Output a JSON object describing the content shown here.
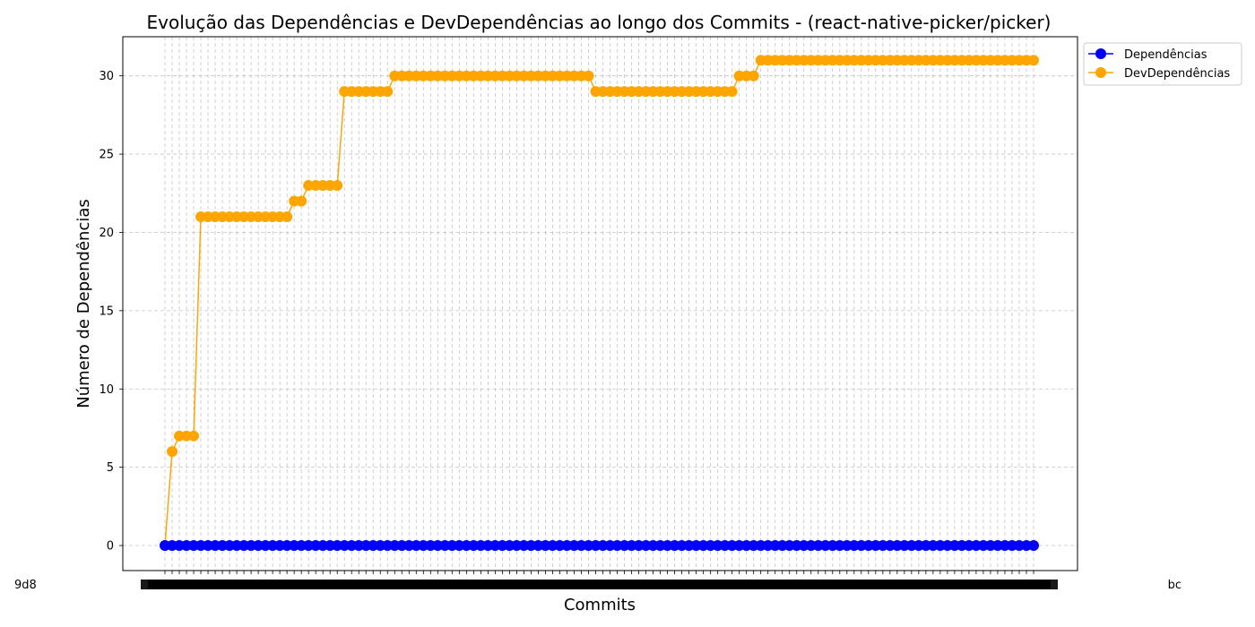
{
  "chart_data": {
    "type": "line",
    "title": "Evolução das Dependências e DevDependências ao longo dos Commits - (react-native-picker/picker)",
    "xlabel": "Commits",
    "ylabel": "Número de Dependências",
    "ylim": [
      -1.6,
      32.5
    ],
    "yticks": [
      0,
      5,
      10,
      15,
      20,
      25,
      30
    ],
    "grid": true,
    "legend_position": "top-right outside",
    "x_tick_labels_note": "commit hashes (overlapping, illegible)",
    "first_x_label_fragment": "9d8",
    "last_x_label_fragment": "bc",
    "series": [
      {
        "name": "Dependências",
        "color": "#0000ff",
        "values": [
          0,
          0,
          0,
          0,
          0,
          0,
          0,
          0,
          0,
          0,
          0,
          0,
          0,
          0,
          0,
          0,
          0,
          0,
          0,
          0,
          0,
          0,
          0,
          0,
          0,
          0,
          0,
          0,
          0,
          0,
          0,
          0,
          0,
          0,
          0,
          0,
          0,
          0,
          0,
          0,
          0,
          0,
          0,
          0,
          0,
          0,
          0,
          0,
          0,
          0,
          0,
          0,
          0,
          0,
          0,
          0,
          0,
          0,
          0,
          0,
          0,
          0,
          0,
          0,
          0,
          0,
          0,
          0,
          0,
          0,
          0,
          0,
          0,
          0,
          0,
          0,
          0,
          0,
          0,
          0,
          0,
          0,
          0,
          0,
          0,
          0,
          0,
          0,
          0,
          0,
          0,
          0,
          0,
          0,
          0,
          0,
          0,
          0,
          0,
          0,
          0,
          0,
          0,
          0,
          0,
          0,
          0,
          0,
          0,
          0,
          0,
          0,
          0,
          0,
          0,
          0,
          0,
          0,
          0,
          0,
          0,
          0
        ]
      },
      {
        "name": "DevDependências",
        "color": "#ffa500",
        "values": [
          0,
          6,
          7,
          7,
          7,
          21,
          21,
          21,
          21,
          21,
          21,
          21,
          21,
          21,
          21,
          21,
          21,
          21,
          22,
          22,
          23,
          23,
          23,
          23,
          23,
          29,
          29,
          29,
          29,
          29,
          29,
          29,
          30,
          30,
          30,
          30,
          30,
          30,
          30,
          30,
          30,
          30,
          30,
          30,
          30,
          30,
          30,
          30,
          30,
          30,
          30,
          30,
          30,
          30,
          30,
          30,
          30,
          30,
          30,
          30,
          29,
          29,
          29,
          29,
          29,
          29,
          29,
          29,
          29,
          29,
          29,
          29,
          29,
          29,
          29,
          29,
          29,
          29,
          29,
          29,
          30,
          30,
          30,
          31,
          31,
          31,
          31,
          31,
          31,
          31,
          31,
          31,
          31,
          31,
          31,
          31,
          31,
          31,
          31,
          31,
          31,
          31,
          31,
          31,
          31,
          31,
          31,
          31,
          31,
          31,
          31,
          31,
          31,
          31,
          31,
          31,
          31,
          31,
          31,
          31,
          31,
          31
        ]
      }
    ]
  }
}
